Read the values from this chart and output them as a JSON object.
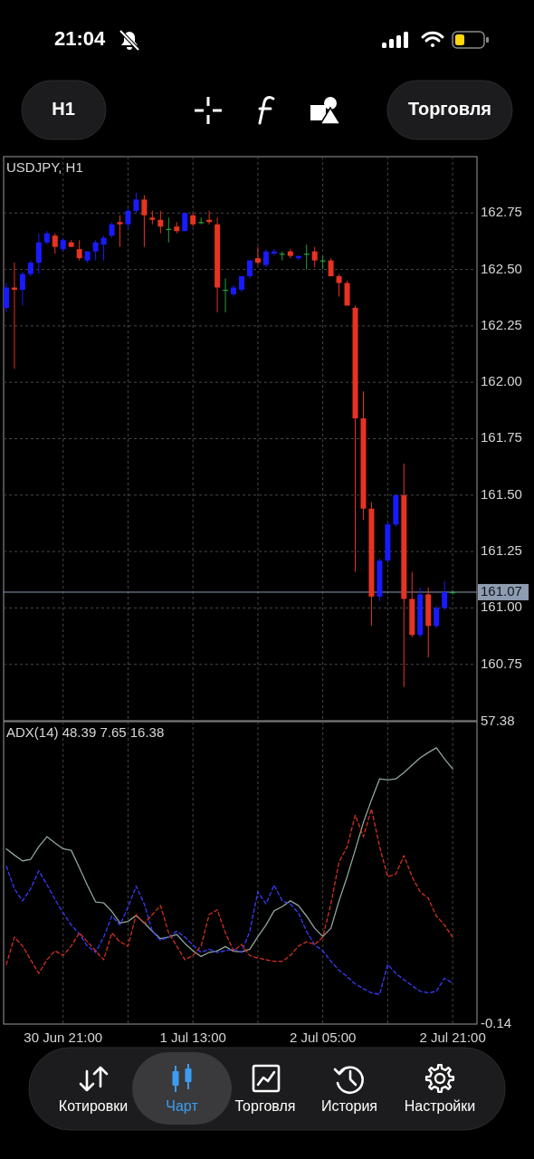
{
  "chart_data": [
    {
      "type": "candlestick",
      "title": "USDJPY, H1",
      "x": [
        "--06-30T14:00",
        "--06-30T15:00",
        "--06-30T16:00",
        "--06-30T17:00",
        "--06-30T18:00",
        "--06-30T19:00",
        "--06-30T20:00",
        "--06-30T21:00",
        "--06-30T22:00",
        "--06-30T23:00",
        "--07-01T00:00",
        "--07-01T01:00",
        "--07-01T02:00",
        "--07-01T03:00",
        "--07-01T04:00",
        "--07-01T05:00",
        "--07-01T06:00",
        "--07-01T07:00",
        "--07-01T08:00",
        "--07-01T09:00",
        "--07-01T10:00",
        "--07-01T11:00",
        "--07-01T12:00",
        "--07-01T13:00",
        "--07-01T14:00",
        "--07-01T15:00",
        "--07-01T16:00",
        "--07-01T17:00",
        "--07-01T18:00",
        "--07-01T19:00",
        "--07-01T20:00",
        "--07-01T21:00",
        "--07-01T22:00",
        "--07-01T23:00",
        "--07-02T00:00",
        "--07-02T01:00",
        "--07-02T02:00",
        "--07-02T03:00",
        "--07-02T04:00",
        "--07-02T05:00",
        "--07-02T06:00",
        "--07-02T07:00",
        "--07-02T08:00",
        "--07-02T09:00",
        "--07-02T10:00",
        "--07-02T11:00",
        "--07-02T12:00",
        "--07-02T13:00",
        "--07-02T14:00",
        "--07-02T15:00",
        "--07-02T16:00",
        "--07-02T17:00",
        "--07-02T18:00",
        "--07-02T19:00",
        "--07-02T20:00",
        "--07-02T21:00"
      ],
      "ohlc": [
        [
          162.33,
          162.44,
          162.31,
          162.42
        ],
        [
          162.42,
          162.53,
          162.06,
          162.41
        ],
        [
          162.41,
          162.49,
          162.34,
          162.48
        ],
        [
          162.48,
          162.54,
          162.47,
          162.53
        ],
        [
          162.53,
          162.66,
          162.48,
          162.62
        ],
        [
          162.62,
          162.67,
          162.61,
          162.66
        ],
        [
          162.65,
          162.66,
          162.57,
          162.6
        ],
        [
          162.59,
          162.64,
          162.58,
          162.63
        ],
        [
          162.62,
          162.63,
          162.6,
          162.6
        ],
        [
          162.59,
          162.63,
          162.54,
          162.55
        ],
        [
          162.54,
          162.58,
          162.53,
          162.58
        ],
        [
          162.58,
          162.63,
          162.54,
          162.62
        ],
        [
          162.61,
          162.65,
          162.54,
          162.64
        ],
        [
          162.65,
          162.71,
          162.64,
          162.7
        ],
        [
          162.71,
          162.74,
          162.6,
          162.7
        ],
        [
          162.7,
          162.77,
          162.68,
          162.76
        ],
        [
          162.76,
          162.84,
          162.75,
          162.81
        ],
        [
          162.81,
          162.83,
          162.6,
          162.74
        ],
        [
          162.73,
          162.76,
          162.7,
          162.72
        ],
        [
          162.72,
          162.76,
          162.66,
          162.69
        ],
        [
          162.68,
          162.73,
          162.62,
          162.68
        ],
        [
          162.69,
          162.71,
          162.66,
          162.67
        ],
        [
          162.67,
          162.75,
          162.67,
          162.75
        ],
        [
          162.74,
          162.75,
          162.69,
          162.7
        ],
        [
          162.71,
          162.73,
          162.7,
          162.71
        ],
        [
          162.72,
          162.76,
          162.7,
          162.71
        ],
        [
          162.7,
          162.73,
          162.31,
          162.42
        ],
        [
          162.41,
          162.46,
          162.31,
          162.41
        ],
        [
          162.39,
          162.43,
          162.38,
          162.42
        ],
        [
          162.41,
          162.47,
          162.4,
          162.47
        ],
        [
          162.47,
          162.54,
          162.46,
          162.54
        ],
        [
          162.55,
          162.6,
          162.52,
          162.53
        ],
        [
          162.52,
          162.59,
          162.51,
          162.58
        ],
        [
          162.57,
          162.59,
          162.56,
          162.58
        ],
        [
          162.57,
          162.58,
          162.54,
          162.57
        ],
        [
          162.58,
          162.59,
          162.55,
          162.56
        ],
        [
          162.55,
          162.56,
          162.54,
          162.56
        ],
        [
          162.57,
          162.61,
          162.5,
          162.57
        ],
        [
          162.58,
          162.6,
          162.51,
          162.54
        ],
        [
          162.54,
          162.56,
          162.5,
          162.54
        ],
        [
          162.54,
          162.55,
          162.47,
          162.47
        ],
        [
          162.47,
          162.48,
          162.38,
          162.44
        ],
        [
          162.44,
          162.45,
          162.34,
          162.34
        ],
        [
          162.33,
          162.34,
          161.16,
          161.84
        ],
        [
          161.84,
          161.96,
          161.39,
          161.44
        ],
        [
          161.44,
          161.47,
          160.92,
          161.05
        ],
        [
          161.05,
          161.22,
          161.03,
          161.21
        ],
        [
          161.21,
          161.38,
          161.2,
          161.37
        ],
        [
          161.37,
          161.5,
          161.36,
          161.5
        ],
        [
          161.5,
          161.64,
          160.65,
          161.04
        ],
        [
          161.04,
          161.16,
          160.87,
          160.88
        ],
        [
          160.88,
          161.09,
          160.87,
          161.06
        ],
        [
          161.06,
          161.09,
          160.78,
          160.92
        ],
        [
          160.92,
          161.01,
          160.91,
          161.0
        ],
        [
          161.0,
          161.12,
          160.99,
          161.07
        ],
        [
          161.07,
          161.08,
          161.06,
          161.07
        ]
      ],
      "colors": [
        "#1a1aff",
        "#e63322",
        "#1a1aff",
        "#1a1aff",
        "#1a1aff",
        "#1a1aff",
        "#e63322",
        "#1a1aff",
        "#e63322",
        "#e63322",
        "#1a1aff",
        "#1a1aff",
        "#1a1aff",
        "#1a1aff",
        "#e63322",
        "#1a1aff",
        "#1a1aff",
        "#e63322",
        "#e63322",
        "#e63322",
        "#2f9e3f",
        "#e63322",
        "#1a1aff",
        "#e63322",
        "#2f9e3f",
        "#e63322",
        "#e63322",
        "#2f9e3f",
        "#1a1aff",
        "#1a1aff",
        "#1a1aff",
        "#e63322",
        "#1a1aff",
        "#1a1aff",
        "#2f9e3f",
        "#e63322",
        "#1a1aff",
        "#2f9e3f",
        "#e63322",
        "#2f9e3f",
        "#e63322",
        "#e63322",
        "#e63322",
        "#e63322",
        "#e63322",
        "#e63322",
        "#1a1aff",
        "#1a1aff",
        "#1a1aff",
        "#e63322",
        "#e63322",
        "#1a1aff",
        "#e63322",
        "#1a1aff",
        "#1a1aff",
        "#2f9e3f"
      ],
      "xlim": [
        "--06-30T13:40",
        "--07-03T00:00"
      ],
      "xticks": [
        {
          "value": "--06-30T21:00",
          "label": null
        },
        {
          "value": "--07-01T05:00",
          "label": null
        },
        {
          "value": "--07-01T13:00",
          "label": null
        },
        {
          "value": "--07-01T21:00",
          "label": null
        },
        {
          "value": "--07-02T05:00",
          "label": null
        },
        {
          "value": "--07-02T13:00",
          "label": null
        },
        {
          "value": "--07-02T21:00",
          "label": null
        }
      ],
      "ylim": [
        160.5,
        163.0
      ],
      "yticks": [
        160.75,
        {
          "value": 161,
          "label": "161.00"
        },
        161.25,
        {
          "value": 161.5,
          "label": "161.50"
        },
        161.75,
        {
          "value": 162,
          "label": "162.00"
        },
        162.25,
        {
          "value": 162.5,
          "label": "162.50"
        },
        162.75
      ],
      "grid": true,
      "tick_labels": "y",
      "ref_lines": [
        {
          "axis": "y",
          "value": 161.07,
          "label": "161.07",
          "color": "#8d9cb0"
        }
      ],
      "annotations": [
        "21:04",
        "H1",
        "Торговля",
        "Котировки",
        "Чарт",
        "Торговля",
        "История",
        "Настройки"
      ]
    },
    {
      "type": "line",
      "title": "ADX(14) 48.39 7.65 16.38",
      "x": [
        "--06-30T14:00",
        "--06-30T15:00",
        "--06-30T16:00",
        "--06-30T17:00",
        "--06-30T18:00",
        "--06-30T19:00",
        "--06-30T20:00",
        "--06-30T21:00",
        "--06-30T22:00",
        "--06-30T23:00",
        "--07-01T00:00",
        "--07-01T01:00",
        "--07-01T02:00",
        "--07-01T03:00",
        "--07-01T04:00",
        "--07-01T05:00",
        "--07-01T06:00",
        "--07-01T07:00",
        "--07-01T08:00",
        "--07-01T09:00",
        "--07-01T10:00",
        "--07-01T11:00",
        "--07-01T12:00",
        "--07-01T13:00",
        "--07-01T14:00",
        "--07-01T15:00",
        "--07-01T16:00",
        "--07-01T17:00",
        "--07-01T18:00",
        "--07-01T19:00",
        "--07-01T20:00",
        "--07-01T21:00",
        "--07-01T22:00",
        "--07-01T23:00",
        "--07-02T00:00",
        "--07-02T01:00",
        "--07-02T02:00",
        "--07-02T03:00",
        "--07-02T04:00",
        "--07-02T05:00",
        "--07-02T06:00",
        "--07-02T07:00",
        "--07-02T08:00",
        "--07-02T09:00",
        "--07-02T10:00",
        "--07-02T11:00",
        "--07-02T12:00",
        "--07-02T13:00",
        "--07-02T14:00",
        "--07-02T15:00",
        "--07-02T16:00",
        "--07-02T17:00",
        "--07-02T18:00",
        "--07-02T19:00",
        "--07-02T20:00",
        "--07-02T21:00"
      ],
      "series": [
        {
          "color": "#8fa89a",
          "line_style": "solid",
          "values": [
            33.2,
            32.0,
            30.9,
            31.2,
            33.6,
            35.5,
            34.3,
            33.2,
            32.9,
            29.6,
            26.2,
            23.1,
            22.9,
            21.3,
            19.1,
            19.4,
            20.5,
            19.1,
            17.5,
            16.1,
            16.4,
            16.9,
            15.2,
            13.8,
            12.7,
            13.5,
            13.8,
            14.6,
            13.7,
            13.6,
            14.1,
            16.5,
            18.7,
            21.4,
            22.2,
            23.3,
            22.4,
            20.4,
            18.1,
            16.5,
            18.1,
            23.3,
            27.9,
            33.0,
            38.2,
            42.5,
            46.5,
            46.3,
            46.5,
            47.7,
            49.1,
            50.5,
            51.5,
            52.4,
            50.3,
            48.39
          ]
        },
        {
          "color": "#3a3aff",
          "line_style": "dashed",
          "values": [
            29.9,
            25.6,
            23.3,
            25.6,
            29.0,
            26.4,
            23.6,
            21.0,
            18.7,
            17.0,
            14.7,
            13.5,
            16.4,
            20.4,
            18.7,
            22.1,
            26.1,
            22.7,
            17.5,
            15.8,
            16.4,
            17.5,
            16.4,
            14.9,
            13.5,
            14.1,
            13.5,
            13.8,
            14.1,
            13.5,
            17.5,
            25.0,
            22.7,
            26.3,
            23.3,
            22.7,
            21.0,
            17.5,
            14.9,
            13.8,
            11.8,
            10.1,
            8.9,
            7.5,
            6.6,
            5.8,
            5.5,
            11.2,
            9.5,
            8.3,
            7.2,
            6.1,
            5.8,
            6.1,
            8.6,
            7.65
          ]
        },
        {
          "color": "#d2301f",
          "line_style": "dashed",
          "values": [
            11.2,
            16.4,
            14.7,
            12.1,
            9.5,
            12.1,
            13.8,
            12.9,
            14.7,
            17.2,
            15.5,
            13.8,
            12.1,
            17.2,
            15.5,
            14.7,
            20.7,
            19.0,
            20.7,
            22.4,
            17.2,
            14.7,
            12.1,
            12.9,
            14.7,
            20.7,
            21.6,
            17.2,
            13.8,
            15.0,
            12.9,
            12.4,
            12.1,
            11.8,
            11.8,
            12.9,
            14.7,
            15.5,
            15.0,
            16.4,
            22.7,
            30.7,
            33.6,
            39.6,
            35.5,
            40.8,
            33.6,
            27.9,
            28.4,
            31.9,
            27.9,
            25.0,
            23.8,
            20.4,
            18.7,
            16.38
          ]
        }
      ],
      "xlim": [
        "--06-30T13:40",
        "--07-03T00:00"
      ],
      "xticks": [
        {
          "value": "--06-30T21:00",
          "label": "30 Jun 21:00"
        },
        {
          "value": "--07-01T05:00",
          "label": null
        },
        {
          "value": "--07-01T13:00",
          "label": "1 Jul 13:00"
        },
        {
          "value": "--07-01T21:00",
          "label": null
        },
        {
          "value": "--07-02T05:00",
          "label": "2 Jul 05:00"
        },
        {
          "value": "--07-02T13:00",
          "label": null
        },
        {
          "value": "--07-02T21:00",
          "label": "2 Jul 21:00"
        }
      ],
      "ylim": [
        -0.14,
        57.38
      ],
      "yticks": [
        -0.14,
        57.38
      ],
      "grid": "x"
    }
  ]
}
